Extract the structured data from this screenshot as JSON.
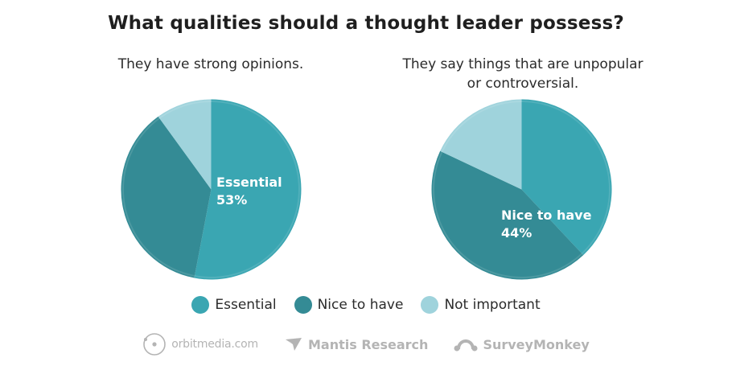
{
  "title": "What qualities should a thought leader possess?",
  "colors": {
    "essential": "#3aa6b2",
    "nice_to_have": "#348b95",
    "not_important": "#9fd3dc"
  },
  "chart_data": [
    {
      "type": "pie",
      "title": "They have strong opinions.",
      "labels": [
        "Essential",
        "Nice to have",
        "Not important"
      ],
      "values": [
        53,
        37,
        10
      ],
      "highlight": {
        "index": 0,
        "name": "Essential",
        "value_text": "53%"
      }
    },
    {
      "type": "pie",
      "title": "They say things that are unpopular or controversial.",
      "labels": [
        "Essential",
        "Nice to have",
        "Not important"
      ],
      "values": [
        38,
        44,
        18
      ],
      "highlight": {
        "index": 1,
        "name": "Nice to have",
        "value_text": "44%"
      }
    }
  ],
  "legend": [
    {
      "label": "Essential",
      "color": "#3aa6b2"
    },
    {
      "label": "Nice to have",
      "color": "#348b95"
    },
    {
      "label": "Not important",
      "color": "#9fd3dc"
    }
  ],
  "footer": {
    "logo1": "orbitmedia.com",
    "logo2": "Mantis Research",
    "logo3": "SurveyMonkey"
  }
}
